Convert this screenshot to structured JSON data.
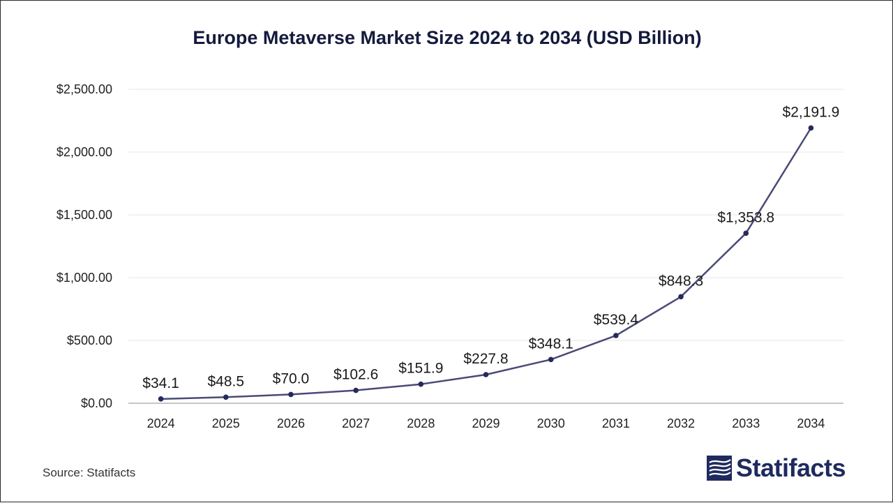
{
  "chart_data": {
    "type": "line",
    "title": "Europe Metaverse Market Size 2024 to 2034 (USD Billion)",
    "categories": [
      "2024",
      "2025",
      "2026",
      "2027",
      "2028",
      "2029",
      "2030",
      "2031",
      "2032",
      "2033",
      "2034"
    ],
    "series": [
      {
        "values": [
          34.1,
          48.5,
          70.0,
          102.6,
          151.9,
          227.8,
          348.1,
          539.4,
          848.3,
          1353.8,
          2191.9
        ]
      }
    ],
    "data_labels": [
      "$34.1",
      "$48.5",
      "$70.0",
      "$102.6",
      "$151.9",
      "$227.8",
      "$348.1",
      "$539.4",
      "$848.3",
      "$1,353.8",
      "$2,191.9"
    ],
    "yticks": [
      0,
      500,
      1000,
      1500,
      2000,
      2500
    ],
    "ytick_labels": [
      "$0.00",
      "$500.00",
      "$1,000.00",
      "$1,500.00",
      "$2,000.00",
      "$2,500.00"
    ],
    "ylim": [
      0,
      2500
    ],
    "grid": true,
    "legend": "none",
    "line_color": "#4a4a78",
    "marker_color": "#252a5c"
  },
  "footer": {
    "source": "Source: Statifacts",
    "brand": "Statifacts",
    "brand_color": "#1f2a5e"
  }
}
